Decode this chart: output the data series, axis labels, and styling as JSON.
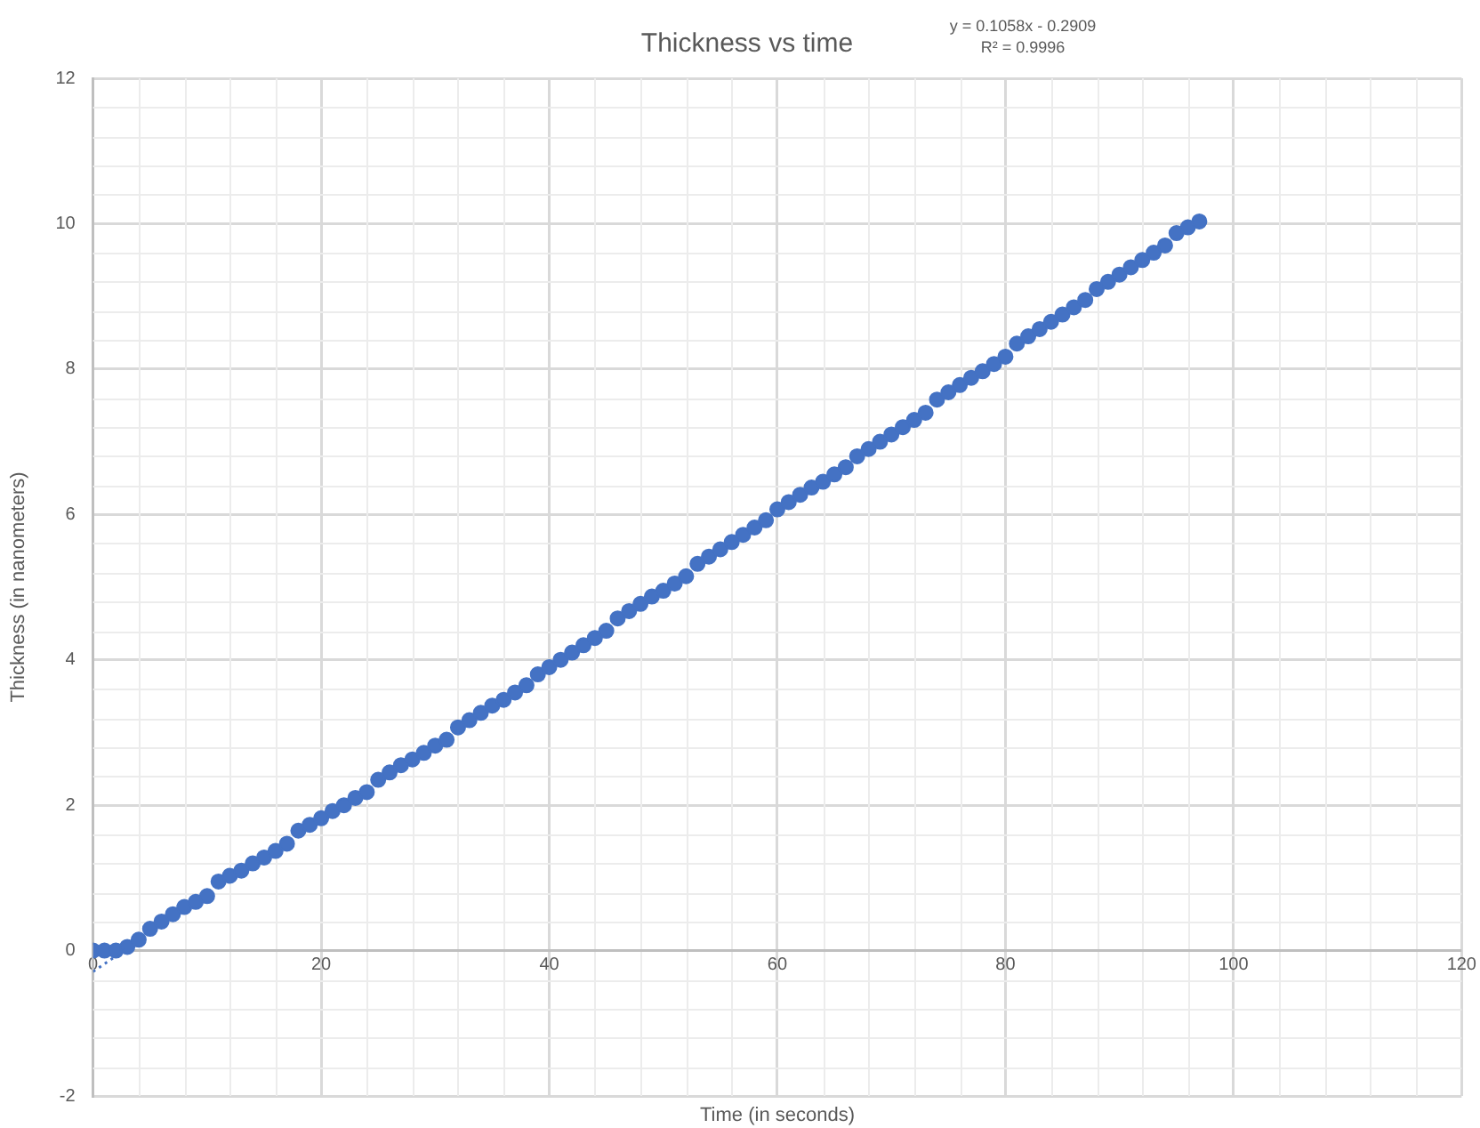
{
  "chart_data": {
    "type": "scatter",
    "title": "Thickness vs time",
    "xlabel": "Time (in seconds)",
    "ylabel": "Thickness (in nanometers)",
    "annotations": [
      "y = 0.1058x - 0.2909",
      "R² = 0.9996"
    ],
    "xlim": [
      0,
      120
    ],
    "xticks": [
      0,
      20,
      40,
      60,
      80,
      100,
      120
    ],
    "ylim": [
      -2,
      12
    ],
    "yticks": [
      -2,
      0,
      2,
      4,
      6,
      8,
      10,
      12
    ],
    "grid": true,
    "legend": false,
    "marker": "circle",
    "series": [
      {
        "color": "#4472c4",
        "x": [
          0,
          1,
          2,
          3,
          4,
          5,
          6,
          7,
          8,
          9,
          10,
          11,
          12,
          13,
          14,
          15,
          16,
          17,
          18,
          19,
          20,
          21,
          22,
          23,
          24,
          25,
          26,
          27,
          28,
          29,
          30,
          31,
          32,
          33,
          34,
          35,
          36,
          37,
          38,
          39,
          40,
          41,
          42,
          43,
          44,
          45,
          46,
          47,
          48,
          49,
          50,
          51,
          52,
          53,
          54,
          55,
          56,
          57,
          58,
          59,
          60,
          61,
          62,
          63,
          64,
          65,
          66,
          67,
          68,
          69,
          70,
          71,
          72,
          73,
          74,
          75,
          76,
          77,
          78,
          79,
          80,
          81,
          82,
          83,
          84,
          85,
          86,
          87,
          88,
          89,
          90,
          91,
          92,
          93,
          94,
          95,
          96,
          97
        ],
        "values": [
          0,
          0,
          0,
          0.05,
          0.15,
          0.3,
          0.4,
          0.5,
          0.6,
          0.67,
          0.75,
          0.95,
          1.03,
          1.1,
          1.2,
          1.28,
          1.37,
          1.47,
          1.65,
          1.73,
          1.82,
          1.92,
          2.0,
          2.1,
          2.18,
          2.35,
          2.45,
          2.55,
          2.63,
          2.72,
          2.82,
          2.9,
          3.07,
          3.17,
          3.27,
          3.37,
          3.45,
          3.55,
          3.65,
          3.8,
          3.9,
          4.0,
          4.1,
          4.2,
          4.3,
          4.4,
          4.57,
          4.67,
          4.77,
          4.87,
          4.95,
          5.05,
          5.15,
          5.32,
          5.42,
          5.52,
          5.62,
          5.72,
          5.82,
          5.92,
          6.07,
          6.17,
          6.27,
          6.37,
          6.45,
          6.55,
          6.65,
          6.8,
          6.9,
          7.0,
          7.1,
          7.2,
          7.3,
          7.4,
          7.58,
          7.68,
          7.78,
          7.88,
          7.97,
          8.07,
          8.17,
          8.35,
          8.45,
          8.55,
          8.65,
          8.75,
          8.85,
          8.95,
          9.1,
          9.2,
          9.3,
          9.4,
          9.5,
          9.6,
          9.7,
          9.87,
          9.95,
          10.03
        ]
      },
      {
        "type": "line",
        "color": "#4472c4",
        "line_style": "dotted",
        "marker": "none",
        "x": [
          0,
          3
        ],
        "values": [
          -0.29,
          0.03
        ]
      }
    ]
  }
}
